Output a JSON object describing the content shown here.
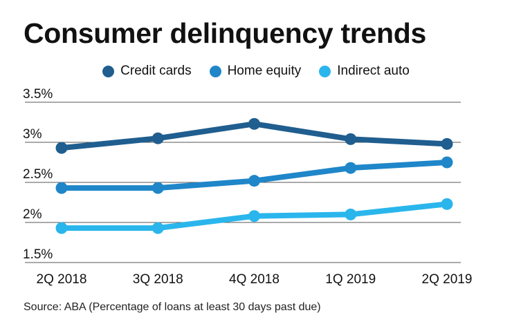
{
  "chart_data": {
    "type": "line",
    "title": "Consumer delinquency trends",
    "categories": [
      "2Q 2018",
      "3Q 2018",
      "4Q 2018",
      "1Q 2019",
      "2Q 2019"
    ],
    "series": [
      {
        "name": "Credit cards",
        "color": "#1f5e8f",
        "values": [
          2.93,
          3.05,
          3.23,
          3.04,
          2.98
        ]
      },
      {
        "name": "Home equity",
        "color": "#1f86c9",
        "values": [
          2.43,
          2.43,
          2.52,
          2.68,
          2.75
        ]
      },
      {
        "name": "Indirect auto",
        "color": "#2ab6ec",
        "values": [
          1.93,
          1.93,
          2.08,
          2.1,
          2.23
        ]
      }
    ],
    "yticks": [
      {
        "value": 3.5,
        "label": "3.5%"
      },
      {
        "value": 3.0,
        "label": "3%"
      },
      {
        "value": 2.5,
        "label": "2.5%"
      },
      {
        "value": 2.0,
        "label": "2%"
      },
      {
        "value": 1.5,
        "label": "1.5%"
      }
    ],
    "ylim": [
      1.5,
      3.5
    ],
    "grid": true,
    "legend_position": "top-center",
    "source": "Source: ABA (Percentage of loans at least 30 days past due)"
  }
}
